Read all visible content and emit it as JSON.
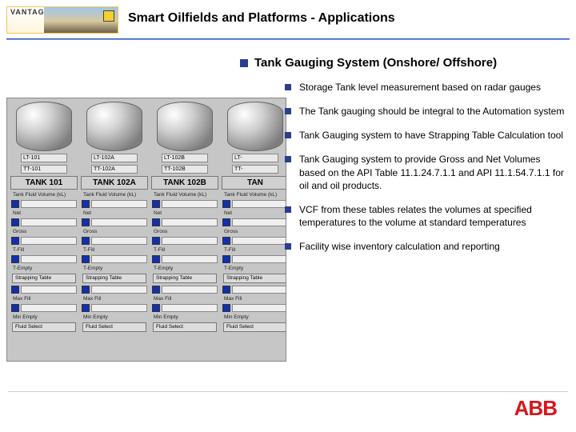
{
  "header": {
    "logo_text": "VANTAGE",
    "title": "Smart Oilfields and Platforms - Applications"
  },
  "main_bullet": "Tank Gauging System (Onshore/ Offshore)",
  "sub_bullets": [
    "Storage Tank level measurement based on radar gauges",
    "The Tank gauging should be integral to the Automation system",
    "Tank Gauging system to have Strapping Table Calculation tool",
    "Tank Gauging system to provide Gross and Net Volumes based on the API Table 11.1.24.7.1.1 and API 11.1.54.7.1.1 for oil and oil products.",
    "VCF from these tables relates the volumes at specified temperatures to the volume at standard temperatures",
    "Facility wise inventory calculation and reporting"
  ],
  "tanks": [
    {
      "name": "TANK 101",
      "lt": "LT-101",
      "tt": "TT-101"
    },
    {
      "name": "TANK 102A",
      "lt": "LT-102A",
      "tt": "TT-102A"
    },
    {
      "name": "TANK 102B",
      "lt": "LT-102B",
      "tt": "TT-102B"
    },
    {
      "name": "TAN",
      "lt": "LT-",
      "tt": "TT-"
    }
  ],
  "tank_fields": {
    "header_line": "Tank Fluid Volume (kL)",
    "rows": [
      "Net",
      "Gross",
      "T-Fill",
      "T-Empty"
    ],
    "btn1": "Strapping Table",
    "foot1": "Max Fill",
    "foot2": "Min Empty",
    "btn2": "Fluid Select"
  },
  "footer": {
    "brand": "ABB"
  },
  "colors": {
    "bullet_sq": "#2a3d8f",
    "abb_red": "#d8151b"
  }
}
